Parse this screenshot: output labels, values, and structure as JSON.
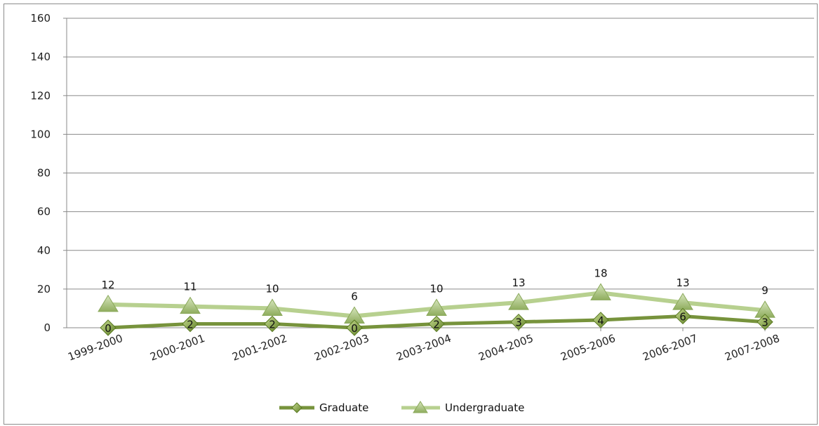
{
  "chart_data": {
    "type": "line",
    "categories": [
      "1999-2000",
      "2000-2001",
      "2001-2002",
      "2002-2003",
      "2003-2004",
      "2004-2005",
      "2005-2006",
      "2006-2007",
      "2007-2008"
    ],
    "series": [
      {
        "name": "Graduate",
        "values": [
          0,
          2,
          2,
          0,
          2,
          3,
          4,
          6,
          3
        ],
        "color": "#77933c",
        "marker": "diamond"
      },
      {
        "name": "Undergraduate",
        "values": [
          12,
          11,
          10,
          6,
          10,
          13,
          18,
          13,
          9
        ],
        "color": "#b7d08f",
        "marker": "triangle"
      }
    ],
    "ylim": [
      0,
      160
    ],
    "yticks": [
      0,
      20,
      40,
      60,
      80,
      100,
      120,
      140,
      160
    ],
    "grid": true,
    "legend_position": "bottom",
    "data_labels": true
  }
}
